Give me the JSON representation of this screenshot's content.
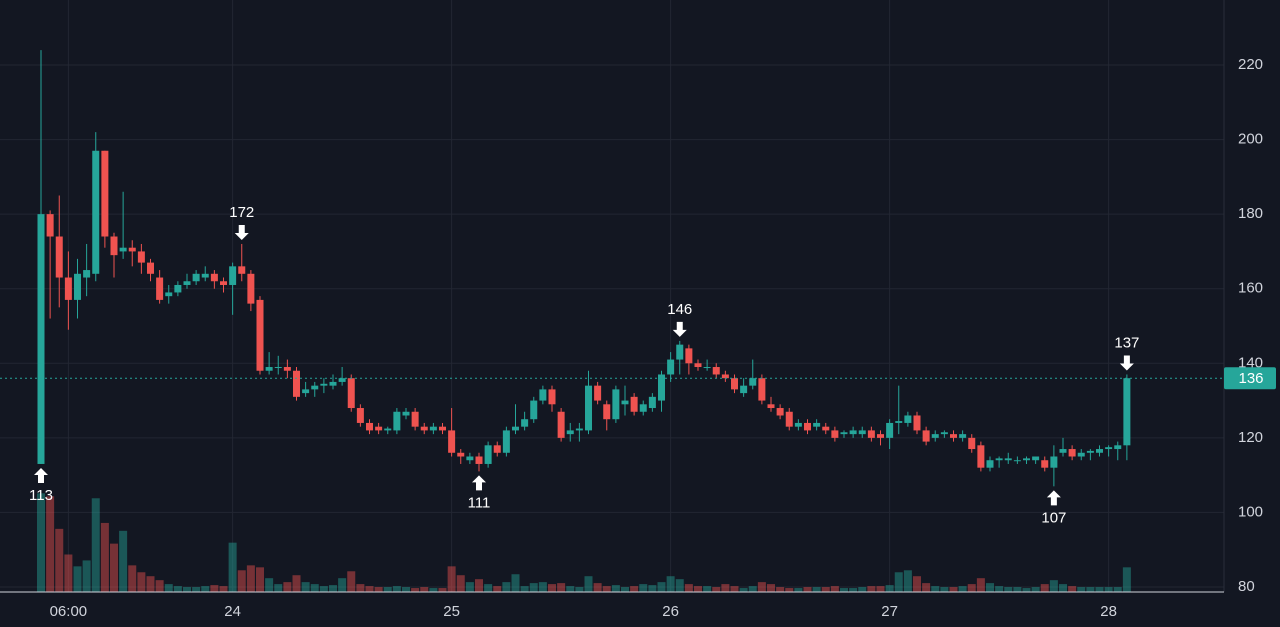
{
  "chart_data": {
    "type": "candlestick",
    "categories": [
      null,
      null,
      null,
      "06:00",
      null,
      null,
      null,
      null,
      null,
      null,
      null,
      null,
      null,
      null,
      null,
      null,
      null,
      null,
      null,
      null,
      null,
      "24",
      null,
      null,
      null,
      null,
      null,
      null,
      null,
      null,
      null,
      null,
      null,
      null,
      null,
      null,
      null,
      null,
      null,
      null,
      null,
      null,
      null,
      null,
      null,
      "25",
      null,
      null,
      null,
      null,
      null,
      null,
      null,
      null,
      null,
      null,
      null,
      null,
      null,
      null,
      null,
      null,
      null,
      null,
      null,
      null,
      null,
      null,
      null,
      "26",
      null,
      null,
      null,
      null,
      null,
      null,
      null,
      null,
      null,
      null,
      null,
      null,
      null,
      null,
      null,
      null,
      null,
      null,
      null,
      null,
      null,
      null,
      null,
      "27",
      null,
      null,
      null,
      null,
      null,
      null,
      null,
      null,
      null,
      null,
      null,
      null,
      null,
      null,
      null,
      null,
      null,
      null,
      null,
      null,
      null,
      null,
      null,
      "28",
      null,
      null
    ],
    "open": [
      113,
      180,
      174,
      163,
      157,
      163,
      164,
      197,
      174,
      170,
      171,
      170,
      167,
      163,
      158,
      159,
      161,
      162,
      163,
      164,
      162,
      161,
      166,
      164,
      157,
      138,
      139,
      139,
      138,
      132,
      133,
      134,
      134,
      135,
      136,
      128,
      124,
      123,
      122,
      122,
      126,
      127,
      123,
      122,
      123,
      122,
      116,
      114,
      115,
      113,
      118,
      116,
      122,
      123,
      125,
      130,
      133,
      127,
      121,
      122,
      122,
      134,
      129,
      125,
      129,
      131,
      127,
      128,
      130,
      137,
      141,
      144,
      140,
      139,
      139,
      137,
      136,
      132,
      134,
      136,
      129,
      128,
      127,
      123,
      124,
      123,
      123,
      122,
      121,
      121,
      121,
      122,
      121,
      120,
      124,
      124,
      126,
      122,
      120,
      121,
      121,
      120,
      120,
      118,
      112,
      114,
      114,
      114,
      114,
      114,
      114,
      112,
      116,
      117,
      115,
      116,
      116,
      117,
      117,
      118
    ],
    "high": [
      224,
      181,
      185,
      170,
      168,
      172,
      202,
      197,
      175,
      186,
      173,
      172,
      168,
      165,
      161,
      162,
      164,
      165,
      166,
      165,
      163,
      167,
      172,
      165,
      158,
      143,
      142,
      141,
      139,
      135,
      135,
      136,
      137,
      139,
      137,
      129,
      125,
      124,
      123,
      128,
      128,
      128,
      124,
      124,
      124,
      128,
      117,
      116,
      116,
      119,
      119,
      123,
      129,
      127,
      131,
      134,
      134,
      128,
      124,
      124,
      138,
      135,
      130,
      134,
      134,
      132,
      130,
      132,
      138,
      143,
      146,
      145,
      141,
      141,
      140,
      138,
      137,
      136,
      141,
      137,
      131,
      129,
      128,
      125,
      125,
      125,
      124,
      123,
      122,
      123,
      123,
      123,
      122,
      125,
      134,
      127,
      127,
      123,
      122,
      122,
      122,
      122,
      121,
      119,
      115,
      115,
      116,
      115,
      115,
      115,
      115,
      118,
      120,
      118,
      117,
      117,
      118,
      118,
      119,
      137
    ],
    "low": [
      113,
      152,
      155,
      149,
      152,
      158,
      162,
      171,
      163,
      168,
      166,
      164,
      162,
      156,
      156,
      158,
      160,
      161,
      162,
      160,
      159,
      153,
      162,
      154,
      137,
      137,
      137,
      136,
      130,
      131,
      131,
      132,
      133,
      134,
      127,
      123,
      121,
      121,
      121,
      121,
      125,
      122,
      121,
      121,
      121,
      115,
      113,
      113,
      111,
      112,
      115,
      115,
      121,
      122,
      124,
      129,
      127,
      119,
      119,
      119,
      121,
      129,
      122,
      124,
      126,
      126,
      126,
      127,
      127,
      135,
      137,
      137,
      138,
      138,
      136,
      135,
      132,
      131,
      133,
      129,
      127,
      125,
      122,
      122,
      121,
      122,
      121,
      119,
      120,
      120,
      120,
      119,
      118,
      117,
      121,
      123,
      121,
      118,
      119,
      120,
      119,
      119,
      116,
      111,
      111,
      112,
      113,
      113,
      113,
      113,
      111,
      107,
      115,
      114,
      114,
      114,
      115,
      115,
      114,
      114
    ],
    "close": [
      180,
      174,
      163,
      157,
      164,
      165,
      197,
      174,
      169,
      171,
      170,
      167,
      164,
      157,
      159,
      161,
      162,
      164,
      164,
      162,
      161,
      166,
      164,
      156,
      138,
      139,
      139,
      138,
      131,
      133,
      134,
      134.5,
      135,
      136,
      128,
      124,
      122,
      122,
      122.5,
      127,
      127,
      123,
      122,
      123,
      122,
      116,
      115,
      115,
      113,
      118,
      116,
      122,
      123,
      125,
      130,
      133,
      129,
      120,
      122,
      122.5,
      134,
      130,
      125,
      133,
      130,
      127,
      129,
      131,
      137,
      141,
      145,
      140,
      139,
      139,
      137,
      136,
      133,
      134,
      136,
      130,
      128,
      126,
      123,
      124,
      122,
      124,
      122,
      120,
      121.5,
      122,
      122,
      120,
      120,
      124,
      124.5,
      126,
      122,
      119,
      121,
      121.5,
      120,
      121,
      117,
      112,
      114,
      114.5,
      114.5,
      114,
      114.5,
      115,
      112,
      115,
      117,
      115,
      116,
      116.5,
      117,
      117.5,
      118,
      136
    ],
    "volume": [
      100,
      97,
      64,
      38,
      26,
      32,
      95,
      70,
      49,
      62,
      27,
      20,
      16,
      12,
      8,
      6,
      5,
      5,
      6,
      7,
      6,
      50,
      22,
      27,
      25,
      14,
      8,
      10,
      17,
      10,
      8,
      6,
      7,
      14,
      21,
      8,
      6,
      5,
      5,
      6,
      5,
      4,
      5,
      4,
      4,
      26,
      17,
      10,
      13,
      8,
      6,
      10,
      18,
      6,
      9,
      10,
      8,
      9,
      6,
      5,
      16,
      9,
      6,
      7,
      5,
      6,
      8,
      7,
      10,
      16,
      13,
      8,
      6,
      6,
      5,
      8,
      6,
      4,
      6,
      10,
      8,
      5,
      4,
      4,
      5,
      5,
      5,
      6,
      4,
      4,
      5,
      6,
      6,
      7,
      20,
      22,
      16,
      9,
      6,
      5,
      5,
      6,
      8,
      14,
      9,
      6,
      5,
      5,
      4,
      5,
      8,
      12,
      8,
      6,
      5,
      5,
      5,
      5,
      5,
      25
    ],
    "volume_lim": [
      0,
      600
    ],
    "up_color": "#26a69a",
    "down_color": "#ef5350",
    "ylim": [
      78.66,
      237.43
    ],
    "yticks": [
      80,
      100,
      120,
      140,
      160,
      180,
      200,
      220
    ],
    "grid": true,
    "price_line": 136,
    "annotations": [
      {
        "index": 0,
        "value": 113,
        "side": "below"
      },
      {
        "index": 22,
        "value": 172,
        "side": "above"
      },
      {
        "index": 48,
        "value": 111,
        "side": "below"
      },
      {
        "index": 70,
        "value": 146,
        "side": "above"
      },
      {
        "index": 111,
        "value": 107,
        "side": "below"
      },
      {
        "index": 119,
        "value": 137,
        "side": "above"
      }
    ]
  }
}
